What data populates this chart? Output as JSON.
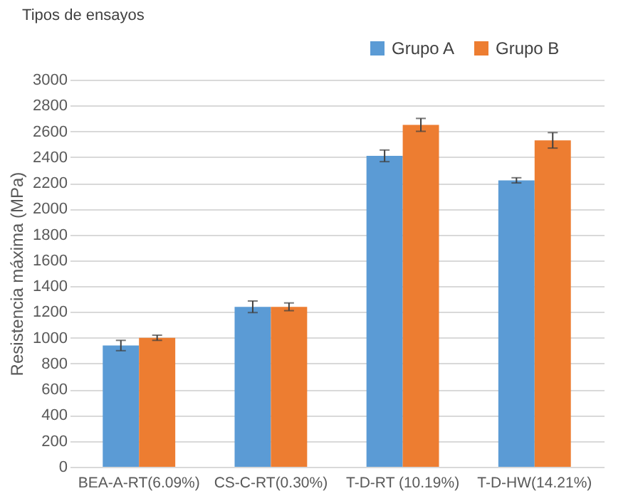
{
  "chart_data": {
    "type": "bar",
    "title": "Tipos de ensayos",
    "ylabel": "Resistencia máxima (MPa)",
    "categories": [
      "BEA-A-RT(6.09%)",
      "CS-C-RT(0.30%)",
      "T-D-RT (10.19%)",
      "T-D-HW(14.21%)"
    ],
    "series": [
      {
        "name": "Grupo A",
        "color": "#5b9bd5",
        "values": [
          940,
          1240,
          2410,
          2220
        ],
        "errors": [
          40,
          45,
          45,
          20
        ]
      },
      {
        "name": "Grupo B",
        "color": "#ed7d31",
        "values": [
          1000,
          1240,
          2650,
          2530
        ],
        "errors": [
          20,
          30,
          50,
          60
        ]
      }
    ],
    "ylim": [
      0,
      3000
    ],
    "yticks": [
      0,
      200,
      400,
      600,
      800,
      1000,
      1200,
      1400,
      1600,
      1800,
      2000,
      2200,
      2400,
      2600,
      2800,
      3000
    ],
    "grid": "y",
    "legend": "top right"
  }
}
